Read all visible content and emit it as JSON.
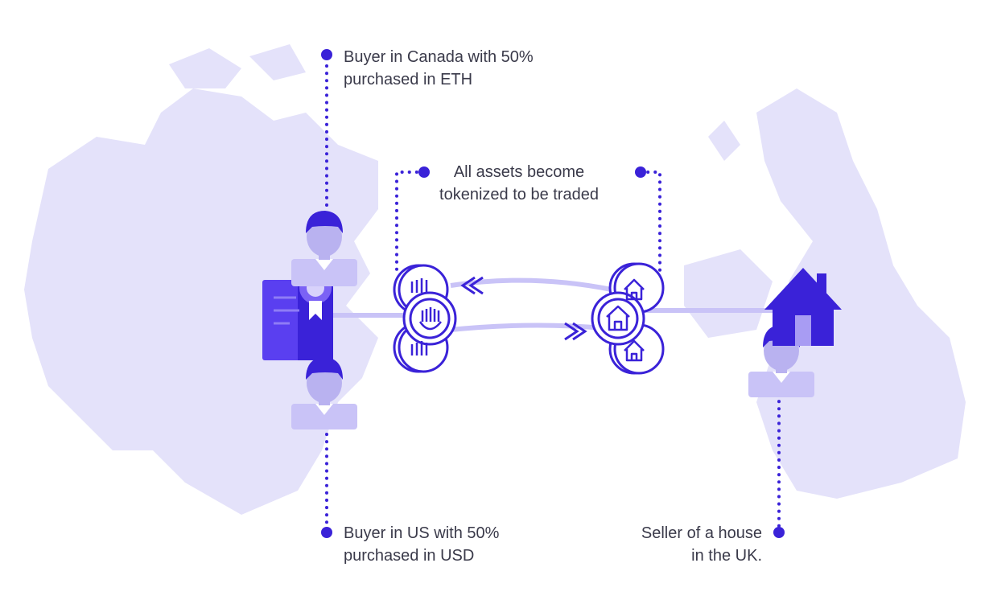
{
  "labels": {
    "buyer_canada": [
      "Buyer in Canada with 50%",
      "purchased in ETH"
    ],
    "buyer_us": [
      "Buyer in US with 50%",
      "purchased in USD"
    ],
    "tokenized": [
      "All assets become",
      "tokenized to be traded"
    ],
    "seller_uk": [
      "Seller of a house",
      "in the UK."
    ]
  },
  "colors": {
    "accent": "#3a22d8",
    "map": "#e4e2fa",
    "person": "#b9b2f0",
    "person_dark": "#3a22d8",
    "text": "#3a3a4a",
    "link": "#c9c3f7"
  },
  "icons": [
    "person-icon",
    "certificate-icon",
    "crypto-token-icon",
    "house-token-icon",
    "house-icon",
    "arrow-icon"
  ]
}
